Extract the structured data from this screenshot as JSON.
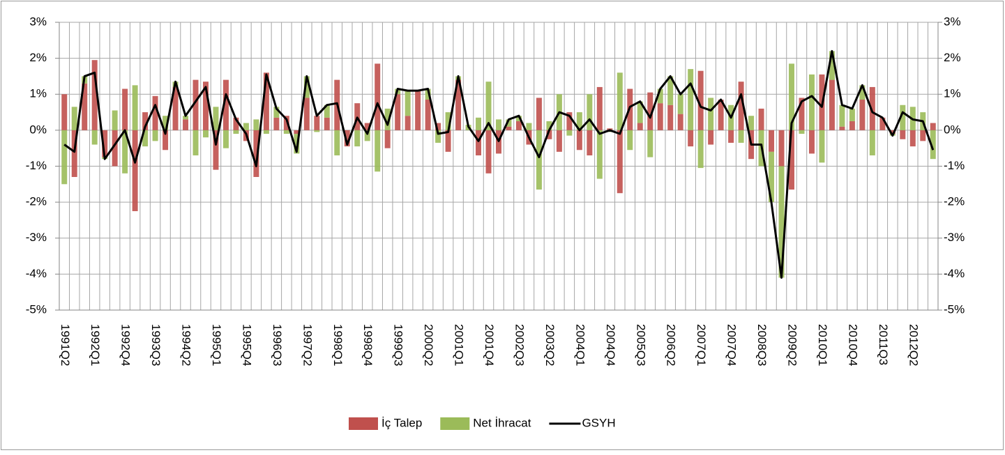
{
  "chart_data": {
    "type": "bar",
    "categories": [
      "1991Q2",
      null,
      null,
      "1992Q1",
      null,
      null,
      "1992Q4",
      null,
      null,
      "1993Q3",
      null,
      null,
      "1994Q2",
      null,
      null,
      "1995Q1",
      null,
      null,
      "1995Q4",
      null,
      null,
      "1996Q3",
      null,
      null,
      "1997Q2",
      null,
      null,
      "1998Q1",
      null,
      null,
      "1998Q4",
      null,
      null,
      "1999Q3",
      null,
      null,
      "2000Q2",
      null,
      null,
      "2001Q1",
      null,
      null,
      "2001Q4",
      null,
      null,
      "2002Q3",
      null,
      null,
      "2003Q2",
      null,
      null,
      "2004Q1",
      null,
      null,
      "2004Q4",
      null,
      null,
      "2005Q3",
      null,
      null,
      "2006Q2",
      null,
      null,
      "2007Q1",
      null,
      null,
      "2007Q4",
      null,
      null,
      "2008Q3",
      null,
      null,
      "2009Q2",
      null,
      null,
      "2010Q1",
      null,
      null,
      "2010Q4",
      null,
      null,
      "2011Q3",
      null,
      null,
      "2012Q2",
      null,
      null
    ],
    "series": [
      {
        "name": "İç Talep",
        "color": "#c0504d",
        "kind": "bar",
        "values": [
          1.0,
          -1.3,
          1.3,
          1.95,
          -0.75,
          -1.0,
          1.15,
          -2.25,
          0.5,
          0.95,
          -0.55,
          1.2,
          0.3,
          1.4,
          1.35,
          -1.1,
          1.4,
          0.35,
          -0.3,
          -1.3,
          1.6,
          0.35,
          0.4,
          -0.1,
          0.9,
          0.4,
          0.35,
          1.4,
          -0.45,
          0.75,
          0.2,
          1.85,
          -0.5,
          1.0,
          0.4,
          1.1,
          0.85,
          0.2,
          -0.6,
          1.4,
          0.0,
          -0.7,
          -1.2,
          -0.65,
          0.1,
          0.25,
          -0.4,
          0.9,
          -0.25,
          -0.6,
          0.5,
          -0.55,
          -0.7,
          1.2,
          0.05,
          -1.75,
          1.15,
          0.2,
          1.05,
          0.75,
          0.7,
          0.45,
          -0.45,
          1.65,
          -0.4,
          0.85,
          -0.35,
          1.35,
          -0.8,
          0.6,
          -0.6,
          -1.0,
          -1.65,
          0.9,
          -0.65,
          1.55,
          1.4,
          0.1,
          0.25,
          0.85,
          1.2,
          0.35,
          -0.1,
          -0.25,
          -0.45,
          -0.3,
          0.2
        ]
      },
      {
        "name": "Net İhracat",
        "color": "#9bbb59",
        "kind": "bar",
        "values": [
          -1.5,
          0.65,
          0.2,
          -0.4,
          -0.05,
          0.55,
          -1.2,
          1.25,
          -0.45,
          -0.3,
          0.4,
          0.15,
          0.1,
          -0.7,
          -0.2,
          0.65,
          -0.5,
          -0.1,
          0.2,
          0.3,
          -0.1,
          0.3,
          -0.1,
          -0.55,
          0.6,
          -0.05,
          0.35,
          -0.7,
          0.0,
          -0.45,
          -0.3,
          -1.15,
          0.6,
          0.15,
          0.7,
          0.0,
          0.3,
          -0.35,
          0.5,
          0.1,
          0.15,
          0.35,
          1.35,
          0.3,
          0.2,
          0.15,
          0.2,
          -1.65,
          0.25,
          1.0,
          -0.15,
          0.5,
          1.0,
          -1.35,
          -0.05,
          1.6,
          -0.55,
          0.6,
          -0.75,
          0.4,
          0.8,
          0.55,
          1.7,
          -1.05,
          0.9,
          0.0,
          0.7,
          -0.35,
          0.4,
          -1.0,
          -1.4,
          -3.1,
          1.85,
          -0.1,
          1.55,
          -0.9,
          0.8,
          0.6,
          0.35,
          0.4,
          -0.7,
          0.0,
          -0.05,
          0.7,
          0.65,
          0.5,
          -0.8
        ]
      },
      {
        "name": "GSYH",
        "color": "#000000",
        "kind": "line",
        "values": [
          -0.4,
          -0.6,
          1.5,
          1.6,
          -0.8,
          -0.4,
          0.0,
          -0.9,
          0.1,
          0.7,
          -0.1,
          1.35,
          0.4,
          0.8,
          1.2,
          -0.4,
          1.0,
          0.3,
          -0.1,
          -1.0,
          1.55,
          0.6,
          0.3,
          -0.6,
          1.5,
          0.4,
          0.7,
          0.75,
          -0.4,
          0.35,
          -0.1,
          0.75,
          0.15,
          1.15,
          1.1,
          1.1,
          1.15,
          -0.1,
          -0.05,
          1.5,
          0.1,
          -0.3,
          0.2,
          -0.3,
          0.3,
          0.4,
          -0.2,
          -0.75,
          0.0,
          0.5,
          0.4,
          0.0,
          0.3,
          -0.1,
          0.0,
          -0.1,
          0.65,
          0.8,
          0.35,
          1.15,
          1.5,
          1.0,
          1.3,
          0.65,
          0.55,
          0.85,
          0.35,
          1.0,
          -0.4,
          -0.4,
          -2.0,
          -4.1,
          0.2,
          0.8,
          0.95,
          0.65,
          2.2,
          0.7,
          0.6,
          1.25,
          0.5,
          0.35,
          -0.15,
          0.5,
          0.3,
          0.25,
          -0.55
        ]
      }
    ],
    "ylim": [
      -5,
      3
    ],
    "yticks": [
      {
        "value": -5,
        "label": "-5%"
      },
      {
        "value": -4,
        "label": "-4%"
      },
      {
        "value": -3,
        "label": "-3%"
      },
      {
        "value": -2,
        "label": "-2%"
      },
      {
        "value": -1,
        "label": "-1%"
      },
      {
        "value": 0,
        "label": "0%"
      },
      {
        "value": 1,
        "label": "1%"
      },
      {
        "value": 2,
        "label": "2%"
      },
      {
        "value": 3,
        "label": "3%"
      }
    ],
    "y2lim": [
      -5,
      3
    ],
    "y2ticks": [
      {
        "value": -5,
        "label": "-5%"
      },
      {
        "value": -4,
        "label": "-4%"
      },
      {
        "value": -3,
        "label": "-3%"
      },
      {
        "value": -2,
        "label": "-2%"
      },
      {
        "value": -1,
        "label": "-1%"
      },
      {
        "value": 0,
        "label": "0%"
      },
      {
        "value": 1,
        "label": "1%"
      },
      {
        "value": 2,
        "label": "2%"
      },
      {
        "value": 3,
        "label": "3%"
      }
    ],
    "grid": true,
    "legend": "bottom"
  }
}
